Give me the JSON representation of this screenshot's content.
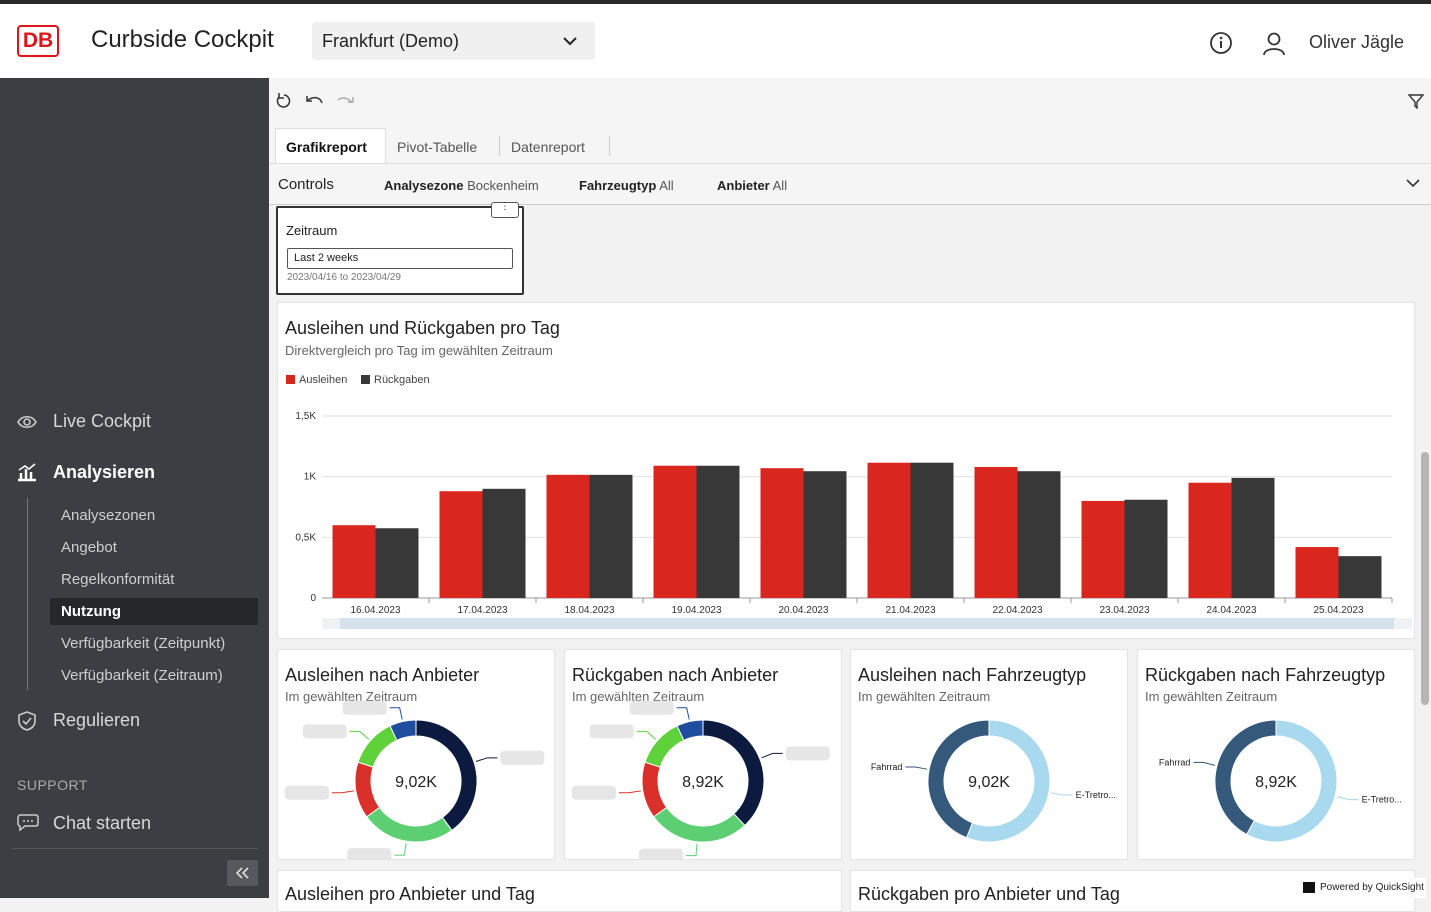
{
  "header": {
    "logo": "DB",
    "app_title": "Curbside Cockpit",
    "city_select": "Frankfurt (Demo)",
    "user": "Oliver Jägle"
  },
  "sidebar": {
    "nav": [
      {
        "label": "Live Cockpit"
      },
      {
        "label": "Analysieren",
        "children": [
          "Analysezonen",
          "Angebot",
          "Regelkonformität",
          "Nutzung",
          "Verfügbarkeit (Zeitpunkt)",
          "Verfügbarkeit (Zeitraum)"
        ]
      },
      {
        "label": "Regulieren"
      }
    ],
    "section": "SUPPORT",
    "chat": "Chat starten"
  },
  "tabs": [
    "Grafikreport",
    "Pivot-Tabelle",
    "Datenreport"
  ],
  "controls": {
    "title": "Controls",
    "filters": [
      {
        "name": "Analysezone",
        "value": "Bockenheim"
      },
      {
        "name": "Fahrzeugtyp",
        "value": "All"
      },
      {
        "name": "Anbieter",
        "value": "All"
      }
    ]
  },
  "date_filter": {
    "title": "Zeitraum",
    "value": "Last 2 weeks",
    "range": "2023/04/16 to 2023/04/29"
  },
  "chart_data": [
    {
      "type": "bar",
      "title": "Ausleihen und Rückgaben pro Tag",
      "subtitle": "Direktvergleich pro Tag im gewählten Zeitraum",
      "categories": [
        "16.04.2023",
        "17.04.2023",
        "18.04.2023",
        "19.04.2023",
        "20.04.2023",
        "21.04.2023",
        "22.04.2023",
        "23.04.2023",
        "24.04.2023",
        "25.04.2023"
      ],
      "series": [
        {
          "name": "Ausleihen",
          "color": "#d9261f",
          "values": [
            600,
            880,
            1015,
            1090,
            1070,
            1115,
            1080,
            800,
            950,
            420
          ]
        },
        {
          "name": "Rückgaben",
          "color": "#383838",
          "values": [
            575,
            900,
            1015,
            1090,
            1045,
            1115,
            1045,
            810,
            990,
            345
          ]
        }
      ],
      "ylim": [
        0,
        1500
      ],
      "yticks": [
        0,
        {
          "value": 500,
          "label": "0,5K"
        },
        {
          "value": 1000,
          "label": "1K"
        },
        {
          "value": 1500,
          "label": "1,5K"
        }
      ],
      "grid": true
    },
    {
      "type": "pie",
      "title": "Ausleihen nach Anbieter",
      "subtitle": "Im gewählten Zeitraum",
      "center_label": "9,02K",
      "categories": [
        null,
        null,
        null,
        null,
        null
      ],
      "values": [
        40,
        25,
        15,
        13,
        7
      ],
      "colors": [
        "#0b1a3e",
        "#5ccf73",
        "#d9302a",
        "#5fd13a",
        "#1f4e9e"
      ]
    },
    {
      "type": "pie",
      "title": "Rückgaben nach Anbieter",
      "subtitle": "Im gewählten Zeitraum",
      "center_label": "8,92K",
      "categories": [
        null,
        null,
        null,
        null,
        null
      ],
      "values": [
        38,
        27,
        15,
        13,
        7
      ],
      "colors": [
        "#0b1a3e",
        "#5ccf73",
        "#d9302a",
        "#5fd13a",
        "#1f4e9e"
      ]
    },
    {
      "type": "pie",
      "title": "Ausleihen nach Fahrzeugtyp",
      "subtitle": "Im gewählten Zeitraum",
      "center_label": "9,02K",
      "categories": [
        "E-Tretro...",
        "Fahrrad"
      ],
      "values": [
        56,
        44
      ],
      "colors": [
        "#a8d9ee",
        "#34597b"
      ]
    },
    {
      "type": "pie",
      "title": "Rückgaben nach Fahrzeugtyp",
      "subtitle": "Im gewählten Zeitraum",
      "center_label": "8,92K",
      "categories": [
        "E-Tretro...",
        "Fahrrad"
      ],
      "values": [
        58,
        42
      ],
      "colors": [
        "#a8d9ee",
        "#34597b"
      ]
    }
  ],
  "lower_panels": [
    "Ausleihen pro Anbieter und Tag",
    "Rückgaben pro Anbieter und Tag"
  ],
  "footer": "Powered by QuickSight"
}
